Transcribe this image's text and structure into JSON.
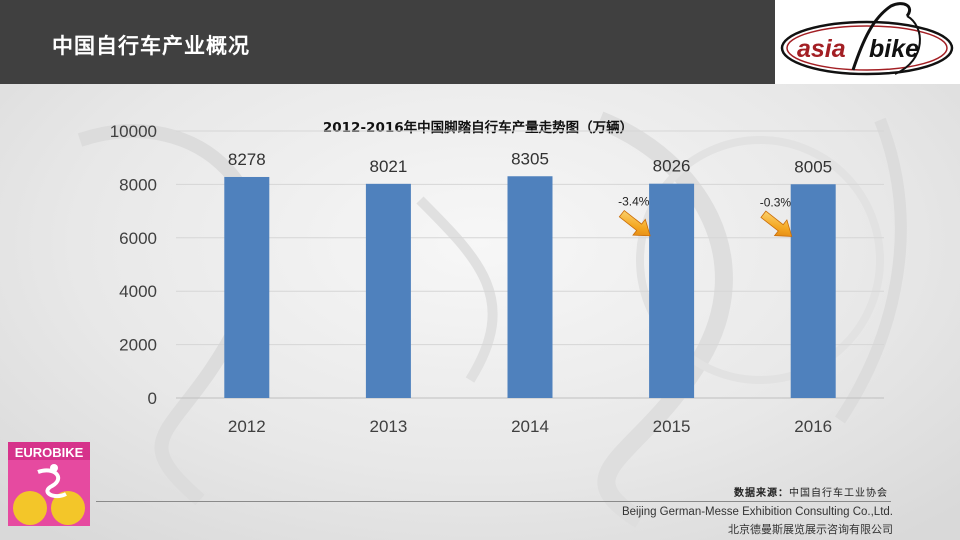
{
  "header": {
    "title": "中国自行车产业概况"
  },
  "logos": {
    "asiabike_left": "asia",
    "asiabike_right": "bike",
    "eurobike": "EUROBIKE"
  },
  "chart_data": {
    "type": "bar",
    "title": "2012-2016年中国脚踏自行车产量走势图（万辆）",
    "categories": [
      "2012",
      "2013",
      "2014",
      "2015",
      "2016"
    ],
    "values": [
      8278,
      8021,
      8305,
      8026,
      8005
    ],
    "data_labels": [
      "8278",
      "8021",
      "8305",
      "8026",
      "8005"
    ],
    "ylim": [
      0,
      10000
    ],
    "yticks": [
      0,
      2000,
      4000,
      6000,
      8000,
      10000
    ],
    "ytick_labels": [
      "0",
      "2000",
      "4000",
      "6000",
      "8000",
      "10000"
    ],
    "xlabel": "",
    "ylabel": "",
    "grid": true,
    "bar_color": "#4f81bd",
    "annotations": [
      {
        "after_category": "2014",
        "text": "-3.4%",
        "arrow": "down-right"
      },
      {
        "after_category": "2015",
        "text": "-0.3%",
        "arrow": "down-right"
      }
    ]
  },
  "footer": {
    "source_label": "数据来源：",
    "source_value": "中国自行车工业协会",
    "company_en": "Beijing German-Messe Exhibition Consulting Co.,Ltd.",
    "company_cn": "北京德曼斯展览展示咨询有限公司"
  }
}
